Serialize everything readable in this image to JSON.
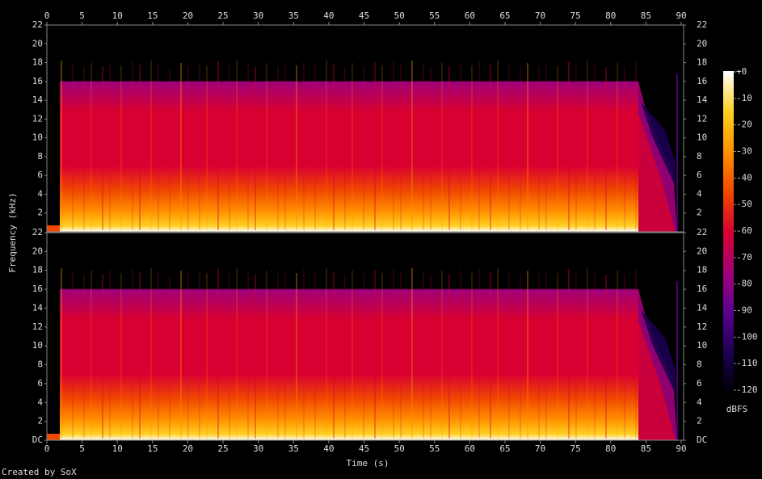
{
  "chart_data": {
    "type": "spectrogram",
    "xlabel": "Time (s)",
    "ylabel": "Frequency (kHz)",
    "xlim": [
      0,
      90
    ],
    "xticks": [
      0,
      5,
      10,
      15,
      20,
      25,
      30,
      35,
      40,
      45,
      50,
      55,
      60,
      65,
      70,
      75,
      80,
      85,
      90
    ],
    "channels": [
      {
        "ylim": [
          0,
          22
        ],
        "yticks": [
          2,
          4,
          6,
          8,
          10,
          12,
          14,
          16,
          18,
          20,
          22
        ]
      },
      {
        "ylim": [
          0,
          22
        ],
        "yticks": [
          {
            "value": 0,
            "label": "DC"
          },
          2,
          4,
          6,
          8,
          10,
          12,
          14,
          16,
          18,
          20,
          22
        ]
      }
    ],
    "colorbar": {
      "label": "dBFS",
      "clim": [
        -120,
        0
      ],
      "ticks": [
        {
          "value": 0,
          "label": "+0"
        },
        -10,
        -20,
        -30,
        -40,
        -50,
        -60,
        -70,
        -80,
        -90,
        -100,
        -110,
        -120
      ],
      "colormap": [
        "#000000",
        "#1a0050",
        "#5a0090",
        "#a0007a",
        "#d80030",
        "#f04800",
        "#ff9000",
        "#ffd020",
        "#ffffff"
      ]
    },
    "credit": "Created by SoX"
  }
}
